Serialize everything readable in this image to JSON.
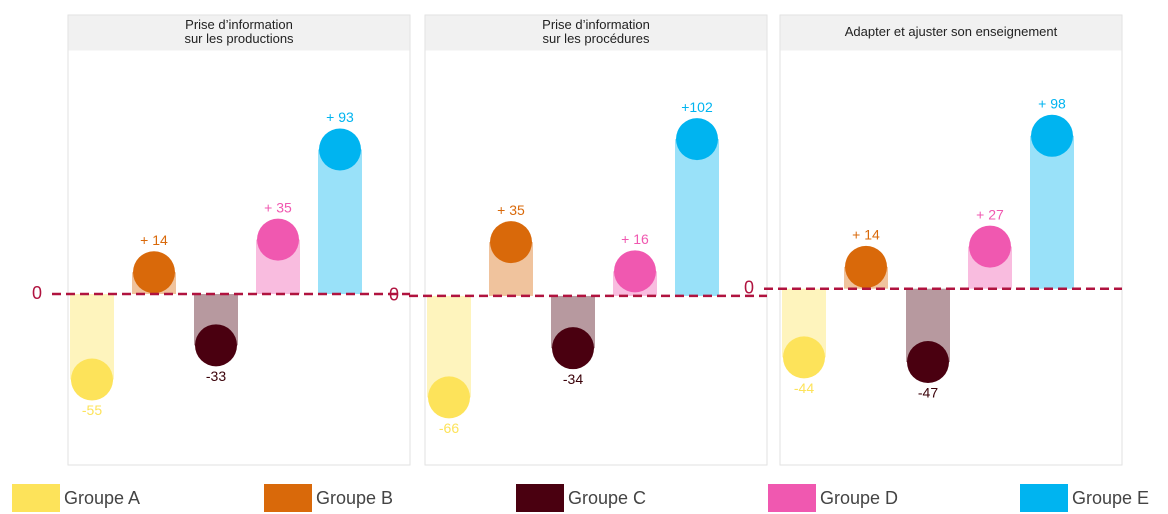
{
  "chart_data": [
    {
      "type": "bar",
      "title": [
        "Prise d’information",
        "sur les productions"
      ],
      "values": [
        -55,
        14,
        -33,
        35,
        93
      ],
      "value_labels": [
        "-55",
        "+ 14",
        "-33",
        "+ 35",
        "+ 93"
      ],
      "ylim": [
        -110,
        157
      ],
      "yticks": [
        0
      ]
    },
    {
      "type": "bar",
      "title": [
        "Prise d’information",
        "sur les procédures"
      ],
      "values": [
        -66,
        35,
        -34,
        16,
        102
      ],
      "value_labels": [
        "-66",
        "+ 35",
        "-34",
        "+ 16",
        "+102"
      ],
      "ylim": [
        -110,
        160
      ],
      "yticks": [
        0
      ]
    },
    {
      "type": "bar",
      "title": [
        "Adapter et ajuster son enseignement"
      ],
      "values": [
        -44,
        14,
        -47,
        27,
        98
      ],
      "value_labels": [
        "-44",
        "+ 14",
        "-47",
        "+ 27",
        "+ 98"
      ],
      "ylim": [
        -113,
        153
      ],
      "yticks": [
        0
      ]
    }
  ],
  "legend": [
    {
      "name": "Groupe A",
      "color": "#fde35a"
    },
    {
      "name": "Groupe B",
      "color": "#d9690a"
    },
    {
      "name": "Groupe C",
      "color": "#4a0010"
    },
    {
      "name": "Groupe D",
      "color": "#f058b0"
    },
    {
      "name": "Groupe E",
      "color": "#00b4f0"
    }
  ]
}
